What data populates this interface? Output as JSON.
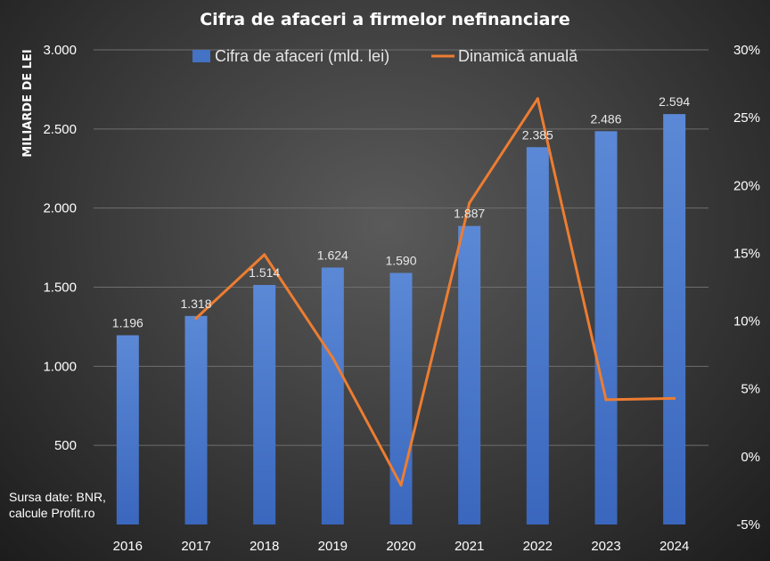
{
  "chart_data": {
    "type": "bar",
    "title": "Cifra de afaceri a firmelor nefinanciare",
    "ylabel": "MILIARDE DE LEI",
    "categories": [
      "2016",
      "2017",
      "2018",
      "2019",
      "2020",
      "2021",
      "2022",
      "2023",
      "2024"
    ],
    "ylim": [
      0,
      3000
    ],
    "y_ticks": [
      "500",
      "1.000",
      "1.500",
      "2.000",
      "2.500",
      "3.000"
    ],
    "y2lim": [
      -5,
      30
    ],
    "y2_ticks": [
      "-5%",
      "0%",
      "5%",
      "10%",
      "15%",
      "20%",
      "25%",
      "30%"
    ],
    "grid": true,
    "legend_position": "top-center",
    "series": [
      {
        "name": "Cifra de afaceri (mld. lei)",
        "type": "bar",
        "axis": "left",
        "color": "#4472c4",
        "values": [
          1196,
          1318,
          1514,
          1624,
          1590,
          1887,
          2385,
          2486,
          2594
        ],
        "labels": [
          "1.196",
          "1.318",
          "1.514",
          "1.624",
          "1.590",
          "1.887",
          "2.385",
          "2.486",
          "2.594"
        ]
      },
      {
        "name": "Dinamică anuală",
        "type": "line",
        "axis": "right",
        "color": "#ed7d31",
        "values": [
          null,
          10.2,
          14.9,
          7.3,
          -2.1,
          18.7,
          26.4,
          4.2,
          4.3
        ]
      }
    ]
  },
  "source_note": [
    "Sursa date: BNR,",
    "calcule Profit.ro"
  ]
}
